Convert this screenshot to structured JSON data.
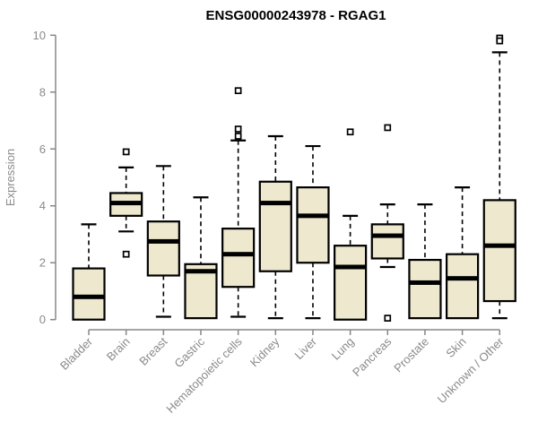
{
  "chart_data": {
    "type": "boxplot",
    "title": "ENSG00000243978 - RGAG1",
    "xlabel": "",
    "ylabel": "Expression",
    "ylim": [
      0,
      10
    ],
    "yticks": [
      0,
      2,
      4,
      6,
      8,
      10
    ],
    "grid": false,
    "legend": "none",
    "categories": [
      "Bladder",
      "Brain",
      "Breast",
      "Gastric",
      "Hematopoietic cells",
      "Kidney",
      "Liver",
      "Lung",
      "Pancreas",
      "Prostate",
      "Skin",
      "Unknown / Other"
    ],
    "series": [
      {
        "category": "Bladder",
        "whisker_low": 0,
        "q1": 0,
        "median": 0.8,
        "q3": 1.8,
        "whisker_high": 3.35,
        "outliers": []
      },
      {
        "category": "Brain",
        "whisker_low": 3.1,
        "q1": 3.65,
        "median": 4.1,
        "q3": 4.45,
        "whisker_high": 5.35,
        "outliers": [
          5.9,
          2.3
        ]
      },
      {
        "category": "Breast",
        "whisker_low": 0.1,
        "q1": 1.55,
        "median": 2.75,
        "q3": 3.45,
        "whisker_high": 5.4,
        "outliers": []
      },
      {
        "category": "Gastric",
        "whisker_low": 0.05,
        "q1": 0.05,
        "median": 1.7,
        "q3": 1.95,
        "whisker_high": 4.3,
        "outliers": []
      },
      {
        "category": "Hematopoietic cells",
        "whisker_low": 0.1,
        "q1": 1.15,
        "median": 2.3,
        "q3": 3.2,
        "whisker_high": 6.3,
        "outliers": [
          8.05,
          6.7,
          6.45
        ]
      },
      {
        "category": "Kidney",
        "whisker_low": 0.05,
        "q1": 1.7,
        "median": 4.1,
        "q3": 4.85,
        "whisker_high": 6.45,
        "outliers": []
      },
      {
        "category": "Liver",
        "whisker_low": 0.05,
        "q1": 2.0,
        "median": 3.65,
        "q3": 4.65,
        "whisker_high": 6.1,
        "outliers": []
      },
      {
        "category": "Lung",
        "whisker_low": 0,
        "q1": 0,
        "median": 1.85,
        "q3": 2.6,
        "whisker_high": 3.65,
        "outliers": [
          6.6
        ]
      },
      {
        "category": "Pancreas",
        "whisker_low": 1.85,
        "q1": 2.15,
        "median": 2.95,
        "q3": 3.35,
        "whisker_high": 4.05,
        "outliers": [
          6.75,
          0.05
        ]
      },
      {
        "category": "Prostate",
        "whisker_low": 0.05,
        "q1": 0.05,
        "median": 1.3,
        "q3": 2.1,
        "whisker_high": 4.05,
        "outliers": []
      },
      {
        "category": "Skin",
        "whisker_low": 0.05,
        "q1": 0.05,
        "median": 1.45,
        "q3": 2.3,
        "whisker_high": 4.65,
        "outliers": []
      },
      {
        "category": "Unknown / Other",
        "whisker_low": 0.05,
        "q1": 0.65,
        "median": 2.6,
        "q3": 4.2,
        "whisker_high": 9.4,
        "outliers": [
          9.9,
          9.8
        ]
      }
    ],
    "colors": {
      "box_fill": "#ede8ce",
      "box_stroke": "#000000",
      "median": "#000000",
      "whisker": "#000000",
      "outlier_fill": "#ffffff",
      "outlier_stroke": "#000000",
      "axis": "#878787",
      "tick_label": "#8a8a8a",
      "title": "#000000",
      "background": "#ffffff"
    }
  }
}
